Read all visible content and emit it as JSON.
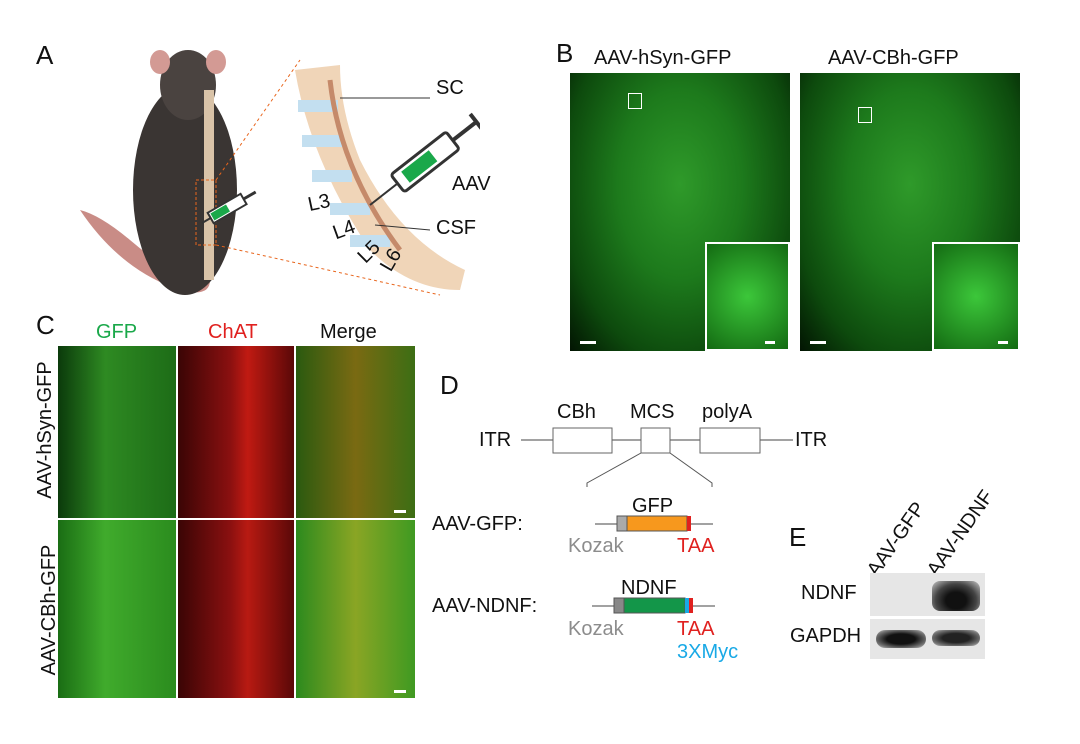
{
  "panels": {
    "A": "A",
    "B": "B",
    "C": "C",
    "D": "D",
    "E": "E"
  },
  "panelA": {
    "labels": {
      "sc": "SC",
      "aav": "AAV",
      "csf": "CSF",
      "l3": "L3",
      "l4": "L4",
      "l5": "L5",
      "l6": "L6"
    }
  },
  "panelB": {
    "titles": [
      "AAV-hSyn-GFP",
      "AAV-CBh-GFP"
    ]
  },
  "panelC": {
    "columns": [
      "GFP",
      "ChAT",
      "Merge"
    ],
    "rows": [
      "AAV-hSyn-GFP",
      "AAV-CBh-GFP"
    ],
    "colors": {
      "GFP": "#1aa84a",
      "ChAT": "#e0211f",
      "Merge": "#111111"
    }
  },
  "panelD": {
    "itr_left": "ITR",
    "itr_right": "ITR",
    "cbh": "CBh",
    "mcs": "MCS",
    "polya": "polyA",
    "constructs": [
      {
        "name": "AAV-GFP:",
        "gene": "GFP",
        "kozak": "Kozak",
        "stop": "TAA",
        "color": "#f7981d"
      },
      {
        "name": "AAV-NDNF:",
        "gene": "NDNF",
        "kozak": "Kozak",
        "stop": "TAA",
        "tag": "3XMyc",
        "color": "#139649"
      }
    ],
    "colors": {
      "kozak": "#8c8c8c",
      "stop": "#e0211f",
      "tag": "#19a9e6"
    }
  },
  "panelE": {
    "lanes": [
      "AAV-GFP",
      "AAV-NDNF"
    ],
    "bands": [
      "NDNF",
      "GAPDH"
    ]
  }
}
